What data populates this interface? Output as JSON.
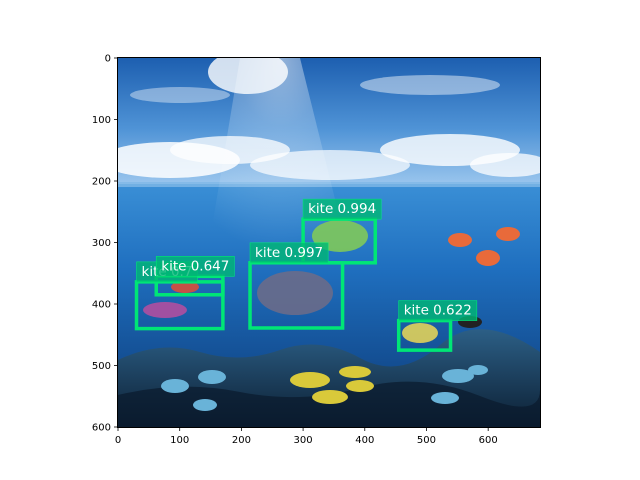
{
  "image": {
    "width": 684,
    "height": 600,
    "scene": "underwater-photo"
  },
  "axes": {
    "xlim": [
      0,
      684
    ],
    "ylim": [
      600,
      0
    ],
    "xticks": [
      "0",
      "100",
      "200",
      "300",
      "400",
      "500",
      "600"
    ],
    "yticks": [
      "0",
      "100",
      "200",
      "300",
      "400",
      "500",
      "600"
    ]
  },
  "detections": [
    {
      "label": "kite 0.994",
      "x0": 300,
      "y0": 262,
      "x1": 417,
      "y1": 333
    },
    {
      "label": "kite 0.997",
      "x0": 214,
      "y0": 333,
      "x1": 364,
      "y1": 439
    },
    {
      "label": "kite 0.7",
      "x0": 30,
      "y0": 364,
      "x1": 170,
      "y1": 440
    },
    {
      "label": "kite 0.647",
      "x0": 62,
      "y0": 355,
      "x1": 170,
      "y1": 385
    },
    {
      "label": "kite 0.622",
      "x0": 455,
      "y0": 427,
      "x1": 539,
      "y1": 475
    }
  ],
  "colors": {
    "box": "#00e676",
    "label_bg": "#00b874",
    "text": "#ffffff"
  }
}
